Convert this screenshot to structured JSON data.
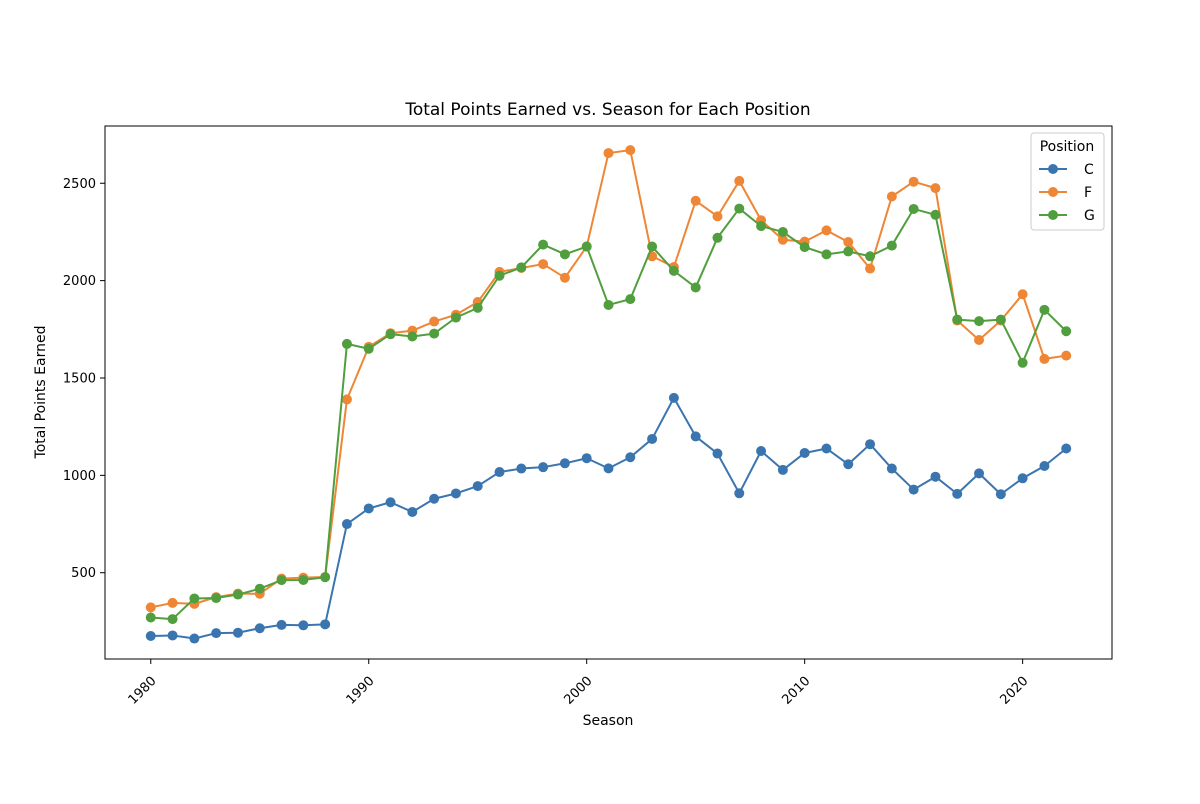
{
  "chart_data": {
    "type": "line",
    "title": "Total Points Earned vs. Season for Each Position",
    "xlabel": "Season",
    "ylabel": "Total Points Earned",
    "xlim": [
      1977.9,
      2024.1
    ],
    "ylim": [
      57,
      2794
    ],
    "xticks": [
      1980,
      1990,
      2000,
      2010,
      2020
    ],
    "yticks": [
      500,
      1000,
      1500,
      2000,
      2500
    ],
    "grid": false,
    "legend": {
      "title": "Position",
      "placement": "top-right"
    },
    "x": [
      1980,
      1981,
      1982,
      1983,
      1984,
      1985,
      1986,
      1987,
      1988,
      1989,
      1990,
      1991,
      1992,
      1993,
      1994,
      1995,
      1996,
      1997,
      1998,
      1999,
      2000,
      2001,
      2002,
      2003,
      2004,
      2005,
      2006,
      2007,
      2008,
      2009,
      2010,
      2011,
      2012,
      2013,
      2014,
      2015,
      2016,
      2017,
      2018,
      2019,
      2020,
      2021,
      2022
    ],
    "series": [
      {
        "name": "C",
        "color": "#3b75af",
        "values": [
          175,
          178,
          162,
          190,
          192,
          215,
          232,
          230,
          235,
          750,
          830,
          862,
          812,
          880,
          907,
          945,
          1017,
          1035,
          1042,
          1062,
          1088,
          1036,
          1093,
          1187,
          1398,
          1200,
          1112,
          908,
          1125,
          1028,
          1115,
          1138,
          1057,
          1160,
          1035,
          927,
          993,
          905,
          1010,
          903,
          985,
          1048,
          1138
        ]
      },
      {
        "name": "F",
        "color": "#ef8636",
        "values": [
          322,
          345,
          340,
          375,
          393,
          392,
          470,
          475,
          478,
          1390,
          1660,
          1730,
          1743,
          1790,
          1825,
          1890,
          2045,
          2065,
          2085,
          2015,
          2175,
          2655,
          2670,
          2125,
          2070,
          2410,
          2330,
          2512,
          2310,
          2210,
          2200,
          2258,
          2198,
          2062,
          2432,
          2508,
          2475,
          1795,
          1695,
          1795,
          1930,
          1598,
          1615
        ]
      },
      {
        "name": "G",
        "color": "#519e3e",
        "values": [
          270,
          262,
          368,
          370,
          388,
          418,
          462,
          463,
          477,
          1675,
          1650,
          1725,
          1713,
          1728,
          1810,
          1860,
          2025,
          2068,
          2185,
          2135,
          2175,
          1875,
          1905,
          2175,
          2050,
          1965,
          2220,
          2370,
          2280,
          2250,
          2172,
          2135,
          2150,
          2125,
          2180,
          2368,
          2338,
          1800,
          1792,
          1800,
          1578,
          1850,
          1740
        ]
      }
    ]
  }
}
